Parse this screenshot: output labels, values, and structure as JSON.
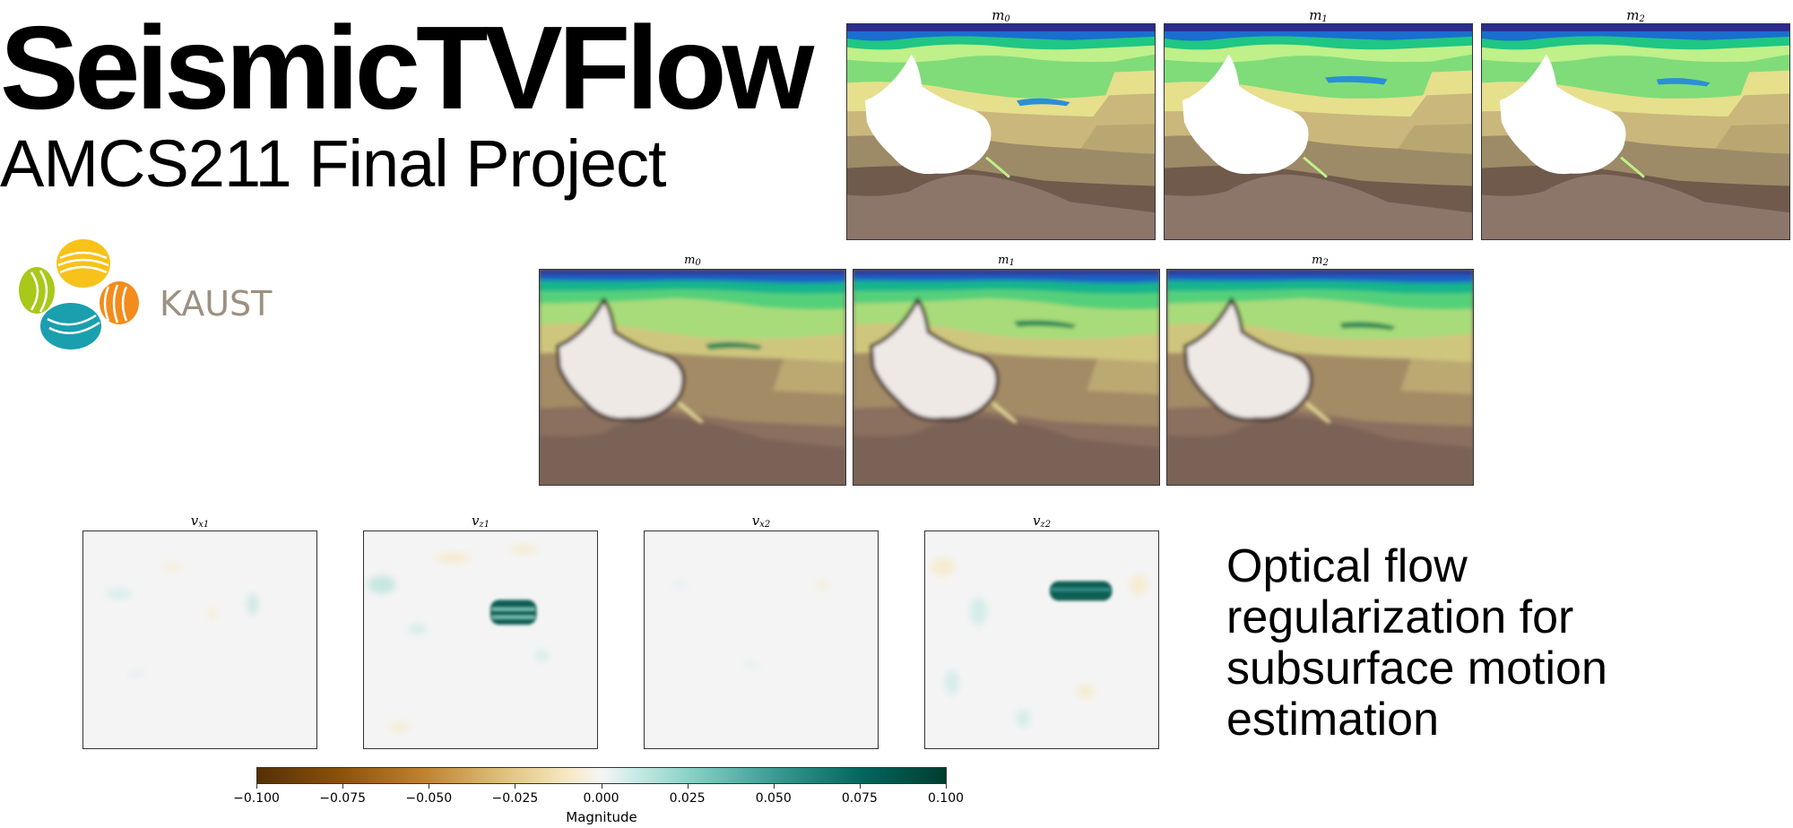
{
  "header": {
    "title": "SeismicTVFlow",
    "subtitle": "AMCS211 Final Project"
  },
  "logo": {
    "text": "KAUST"
  },
  "top_row": {
    "panels": [
      {
        "base": "m",
        "sub": "0"
      },
      {
        "base": "m",
        "sub": "1"
      },
      {
        "base": "m",
        "sub": "2"
      }
    ]
  },
  "middle_row": {
    "panels": [
      {
        "base": "m",
        "sub": "0"
      },
      {
        "base": "m",
        "sub": "1"
      },
      {
        "base": "m",
        "sub": "2"
      }
    ]
  },
  "bottom_row": {
    "panels": [
      {
        "base": "v",
        "sub": "x1"
      },
      {
        "base": "v",
        "sub": "z1"
      },
      {
        "base": "v",
        "sub": "x2"
      },
      {
        "base": "v",
        "sub": "z2"
      }
    ]
  },
  "colorbar": {
    "label": "Magnitude",
    "ticks": [
      "−0.100",
      "−0.075",
      "−0.050",
      "−0.025",
      "0.000",
      "0.025",
      "0.050",
      "0.075",
      "0.100"
    ],
    "colors": [
      "#543005",
      "#8c510a",
      "#bf812d",
      "#dfc27d",
      "#f6e8c3",
      "#f5f5f5",
      "#c7eae5",
      "#80cdc1",
      "#35978f",
      "#01665e",
      "#003c30"
    ]
  },
  "description": {
    "lines": [
      "Optical flow",
      "regularization for",
      "subsurface motion",
      "estimation"
    ]
  }
}
